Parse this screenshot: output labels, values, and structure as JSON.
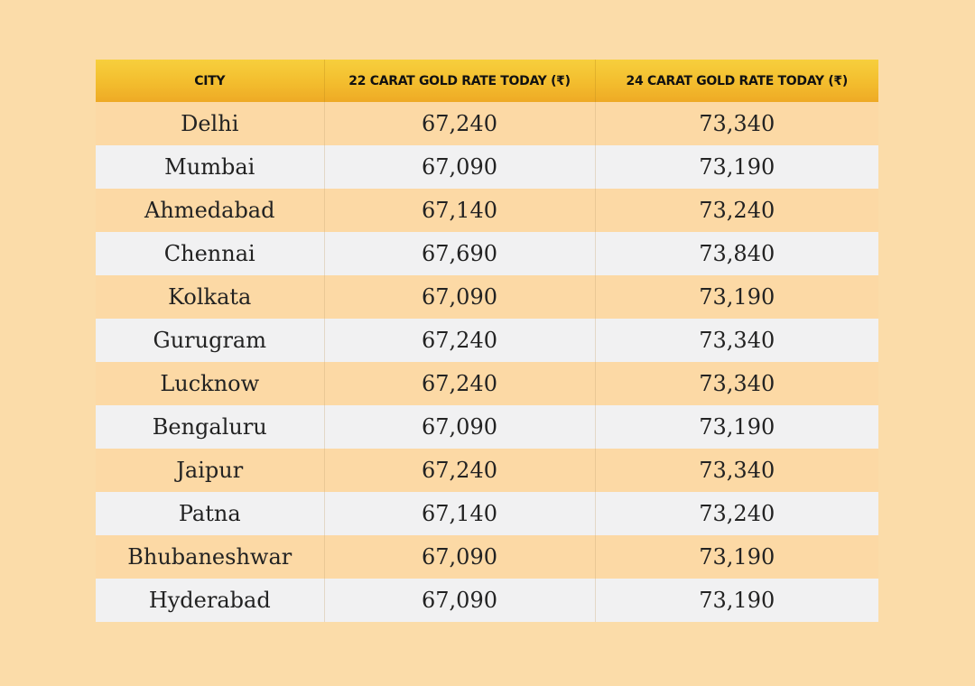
{
  "table": {
    "headers": {
      "city": "CITY",
      "rate_22k": "22 CARAT GOLD RATE TODAY (₹)",
      "rate_24k": "24 CARAT GOLD RATE TODAY (₹)"
    },
    "rows": [
      {
        "city": "Delhi",
        "rate_22k": "67,240",
        "rate_24k": "73,340"
      },
      {
        "city": "Mumbai",
        "rate_22k": "67,090",
        "rate_24k": "73,190"
      },
      {
        "city": "Ahmedabad",
        "rate_22k": "67,140",
        "rate_24k": "73,240"
      },
      {
        "city": "Chennai",
        "rate_22k": "67,690",
        "rate_24k": "73,840"
      },
      {
        "city": "Kolkata",
        "rate_22k": "67,090",
        "rate_24k": "73,190"
      },
      {
        "city": "Gurugram",
        "rate_22k": "67,240",
        "rate_24k": "73,340"
      },
      {
        "city": "Lucknow",
        "rate_22k": "67,240",
        "rate_24k": "73,340"
      },
      {
        "city": "Bengaluru",
        "rate_22k": "67,090",
        "rate_24k": "73,190"
      },
      {
        "city": "Jaipur",
        "rate_22k": "67,240",
        "rate_24k": "73,340"
      },
      {
        "city": "Patna",
        "rate_22k": "67,140",
        "rate_24k": "73,240"
      },
      {
        "city": "Bhubaneshwar",
        "rate_22k": "67,090",
        "rate_24k": "73,190"
      },
      {
        "city": "Hyderabad",
        "rate_22k": "67,090",
        "rate_24k": "73,190"
      }
    ]
  },
  "colors": {
    "background": "#fbdca9",
    "header_gradient_top": "#f7cf3d",
    "header_gradient_bottom": "#eeaa25",
    "row_odd": "#fcd9a5",
    "row_even": "#f1f1f2"
  }
}
